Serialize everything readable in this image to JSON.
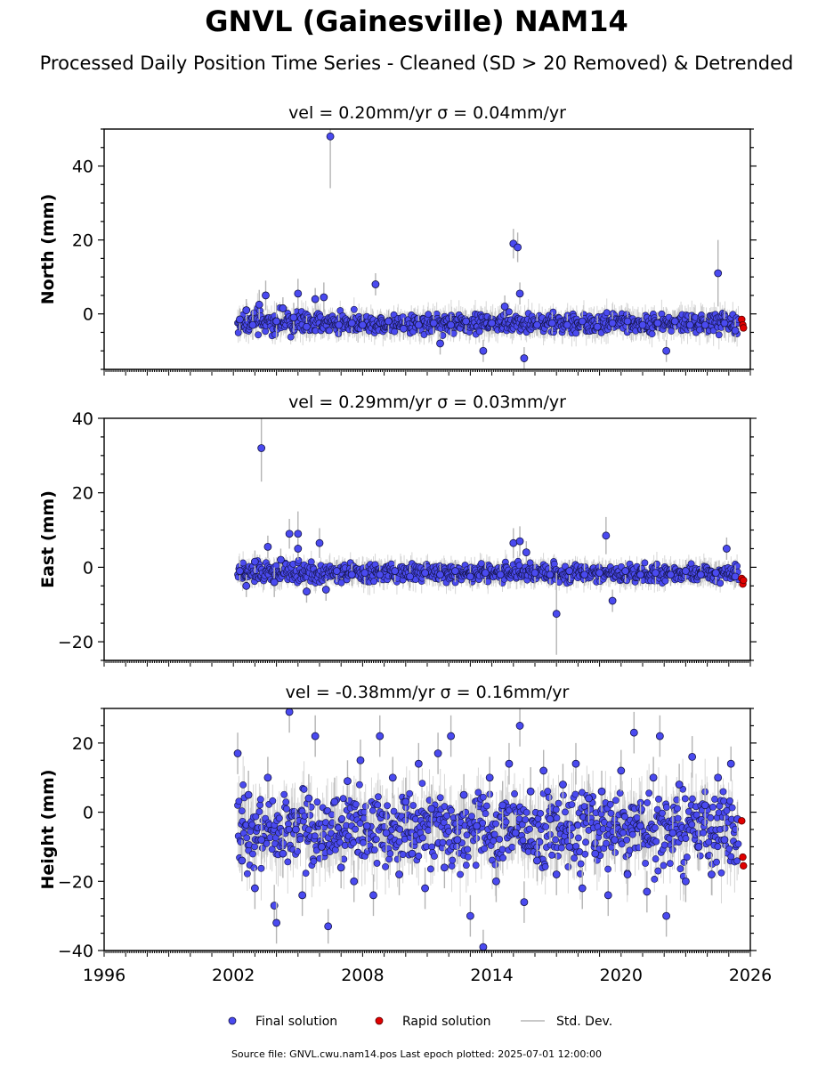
{
  "figure": {
    "title": "GNVL (Gainesville) NAM14",
    "subtitle": "Processed Daily Position Time Series - Cleaned (SD > 20 Removed) & Detrended",
    "footer": "Source file: GNVL.cwu.nam14.pos  Last epoch plotted: 2025-07-01 12:00:00"
  },
  "legend": {
    "final": "Final solution",
    "rapid": "Rapid solution",
    "sd": "Std. Dev."
  },
  "colors": {
    "final_fill": "#4a4af0",
    "final_edge": "#141446",
    "rapid_fill": "#e00000",
    "sd_line": "#b4b4b4"
  },
  "chart_data": [
    {
      "type": "scatter",
      "ylabel": "North (mm)",
      "title_vel": "vel = 0.20mm/yr",
      "title_sigma": "σ = 0.04mm/yr",
      "xlim": [
        1996,
        2026
      ],
      "ylim": [
        -15,
        50
      ],
      "yticks": [
        0,
        20,
        40
      ],
      "yticklabels": [
        "0",
        "20",
        "40"
      ],
      "series": [
        {
          "name": "Final solution",
          "points": [
            [
              2002.3,
              -1.5,
              3
            ],
            [
              2002.6,
              1.0,
              3
            ],
            [
              2002.9,
              -3.0,
              4
            ],
            [
              2003.2,
              2.5,
              4
            ],
            [
              2003.5,
              5.0,
              4
            ],
            [
              2004.0,
              -2.0,
              5
            ],
            [
              2004.3,
              1.5,
              3
            ],
            [
              2004.8,
              -1.0,
              4
            ],
            [
              2005.0,
              5.5,
              4
            ],
            [
              2005.4,
              -3.5,
              3
            ],
            [
              2005.8,
              4.0,
              3
            ],
            [
              2006.2,
              4.5,
              4
            ],
            [
              2006.5,
              48.0,
              14
            ],
            [
              2006.9,
              -3.0,
              3
            ],
            [
              2007.5,
              -2.5,
              3
            ],
            [
              2008.0,
              -3.0,
              3
            ],
            [
              2008.6,
              8.0,
              3
            ],
            [
              2009.2,
              -2.0,
              3
            ],
            [
              2009.9,
              -4.0,
              3
            ],
            [
              2010.6,
              -3.0,
              3
            ],
            [
              2011.3,
              -2.5,
              3
            ],
            [
              2011.6,
              -8.0,
              3
            ],
            [
              2012.1,
              -3.0,
              3
            ],
            [
              2012.8,
              -2.0,
              3
            ],
            [
              2013.6,
              -10.0,
              3
            ],
            [
              2014.0,
              -2.5,
              3
            ],
            [
              2014.6,
              2.0,
              3
            ],
            [
              2015.0,
              19.0,
              4
            ],
            [
              2015.2,
              18.0,
              4
            ],
            [
              2015.3,
              5.5,
              3
            ],
            [
              2015.5,
              -12.0,
              3
            ],
            [
              2016.1,
              -3.0,
              3
            ],
            [
              2016.8,
              -2.5,
              3
            ],
            [
              2017.5,
              -3.0,
              3
            ],
            [
              2018.2,
              -2.0,
              3
            ],
            [
              2018.9,
              -3.5,
              3
            ],
            [
              2019.6,
              -2.5,
              3
            ],
            [
              2020.3,
              -2.0,
              3
            ],
            [
              2021.0,
              -3.0,
              3
            ],
            [
              2021.7,
              -2.5,
              3
            ],
            [
              2022.1,
              -10.0,
              3
            ],
            [
              2022.5,
              -2.0,
              3
            ],
            [
              2023.2,
              -3.0,
              3
            ],
            [
              2023.9,
              -3.0,
              3
            ],
            [
              2024.5,
              11.0,
              9
            ],
            [
              2024.8,
              -2.5,
              4
            ],
            [
              2025.3,
              -4.5,
              3
            ]
          ]
        },
        {
          "name": "Rapid solution",
          "points": [
            [
              2025.6,
              -1.5,
              0
            ],
            [
              2025.65,
              -3.0,
              0
            ],
            [
              2025.68,
              -3.8,
              0
            ]
          ]
        }
      ]
    },
    {
      "type": "scatter",
      "ylabel": "East (mm)",
      "title_vel": "vel = 0.29mm/yr",
      "title_sigma": "σ = 0.03mm/yr",
      "xlim": [
        1996,
        2026
      ],
      "ylim": [
        -25,
        40
      ],
      "yticks": [
        -20,
        0,
        20,
        40
      ],
      "yticklabels": [
        "−20",
        "0",
        "20",
        "40"
      ],
      "series": [
        {
          "name": "Final solution",
          "points": [
            [
              2002.3,
              -1.0,
              3
            ],
            [
              2002.6,
              -5.0,
              3
            ],
            [
              2003.0,
              1.5,
              3
            ],
            [
              2003.3,
              32.0,
              9
            ],
            [
              2003.6,
              5.5,
              3
            ],
            [
              2003.9,
              -4.0,
              4
            ],
            [
              2004.2,
              2.0,
              3
            ],
            [
              2004.6,
              9.0,
              4
            ],
            [
              2005.0,
              9.0,
              6
            ],
            [
              2005.0,
              5.0,
              3
            ],
            [
              2005.4,
              -6.5,
              3
            ],
            [
              2006.0,
              6.5,
              4
            ],
            [
              2006.3,
              -6.0,
              3
            ],
            [
              2006.8,
              -1.0,
              3
            ],
            [
              2007.5,
              -2.0,
              3
            ],
            [
              2008.1,
              -1.5,
              3
            ],
            [
              2008.8,
              -2.0,
              3
            ],
            [
              2009.5,
              -1.0,
              3
            ],
            [
              2010.2,
              -2.5,
              3
            ],
            [
              2010.9,
              -1.5,
              3
            ],
            [
              2011.6,
              -2.0,
              3
            ],
            [
              2012.3,
              -1.0,
              3
            ],
            [
              2013.0,
              -2.5,
              3
            ],
            [
              2013.7,
              -1.5,
              3
            ],
            [
              2014.4,
              -2.0,
              3
            ],
            [
              2015.0,
              6.5,
              4
            ],
            [
              2015.3,
              7.0,
              4
            ],
            [
              2015.6,
              4.0,
              3
            ],
            [
              2016.0,
              -1.5,
              3
            ],
            [
              2016.7,
              -2.0,
              3
            ],
            [
              2017.0,
              -12.5,
              11
            ],
            [
              2017.6,
              -1.0,
              3
            ],
            [
              2018.3,
              -2.0,
              3
            ],
            [
              2019.0,
              -1.5,
              3
            ],
            [
              2019.3,
              8.5,
              5
            ],
            [
              2019.6,
              -9.0,
              3
            ],
            [
              2020.2,
              -1.0,
              3
            ],
            [
              2020.9,
              -2.0,
              3
            ],
            [
              2021.6,
              -1.5,
              3
            ],
            [
              2022.3,
              -2.0,
              3
            ],
            [
              2023.0,
              -1.0,
              3
            ],
            [
              2023.7,
              -2.0,
              3
            ],
            [
              2024.4,
              -1.5,
              3
            ],
            [
              2024.9,
              5.0,
              3
            ],
            [
              2025.3,
              -2.5,
              3
            ]
          ]
        },
        {
          "name": "Rapid solution",
          "points": [
            [
              2025.6,
              -3.0,
              0
            ],
            [
              2025.65,
              -4.5,
              0
            ],
            [
              2025.68,
              -3.5,
              0
            ]
          ]
        }
      ]
    },
    {
      "type": "scatter",
      "ylabel": "Height (mm)",
      "title_vel": "vel = -0.38mm/yr",
      "title_sigma": "σ = 0.16mm/yr",
      "xlim": [
        1996,
        2026
      ],
      "ylim": [
        -40,
        30
      ],
      "yticks": [
        -40,
        -20,
        0,
        20
      ],
      "yticklabels": [
        "−40",
        "−20",
        "0",
        "20"
      ],
      "xticks": [
        1996,
        2002,
        2008,
        2014,
        2020,
        2026
      ],
      "xticklabels": [
        "1996",
        "2002",
        "2008",
        "2014",
        "2020",
        "2026"
      ],
      "series": [
        {
          "name": "Final solution",
          "points": [
            [
              2002.2,
              17.0,
              6
            ],
            [
              2002.4,
              -14.0,
              6
            ],
            [
              2002.7,
              5.0,
              7
            ],
            [
              2003.0,
              -22.0,
              6
            ],
            [
              2003.3,
              -8.0,
              7
            ],
            [
              2003.6,
              10.0,
              6
            ],
            [
              2003.9,
              -27.0,
              6
            ],
            [
              2004.0,
              -32.0,
              6
            ],
            [
              2004.3,
              -12.0,
              7
            ],
            [
              2004.6,
              29.0,
              6
            ],
            [
              2004.9,
              -5.0,
              6
            ],
            [
              2005.2,
              -24.0,
              6
            ],
            [
              2005.5,
              4.0,
              7
            ],
            [
              2005.8,
              22.0,
              6
            ],
            [
              2006.1,
              -10.0,
              6
            ],
            [
              2006.4,
              -33.0,
              5
            ],
            [
              2006.7,
              3.0,
              7
            ],
            [
              2007.0,
              -16.0,
              6
            ],
            [
              2007.3,
              9.0,
              6
            ],
            [
              2007.6,
              -20.0,
              6
            ],
            [
              2007.9,
              15.0,
              6
            ],
            [
              2008.2,
              -4.0,
              7
            ],
            [
              2008.5,
              -24.0,
              6
            ],
            [
              2008.8,
              22.0,
              6
            ],
            [
              2009.1,
              -6.0,
              7
            ],
            [
              2009.4,
              10.0,
              6
            ],
            [
              2009.7,
              -18.0,
              6
            ],
            [
              2010.0,
              3.0,
              7
            ],
            [
              2010.3,
              -12.0,
              6
            ],
            [
              2010.6,
              14.0,
              6
            ],
            [
              2010.9,
              -22.0,
              6
            ],
            [
              2011.2,
              1.0,
              7
            ],
            [
              2011.5,
              17.0,
              6
            ],
            [
              2011.8,
              -16.0,
              6
            ],
            [
              2012.1,
              22.0,
              6
            ],
            [
              2012.4,
              -8.0,
              7
            ],
            [
              2012.7,
              5.0,
              6
            ],
            [
              2013.0,
              -30.0,
              6
            ],
            [
              2013.3,
              -4.0,
              7
            ],
            [
              2013.6,
              -39.0,
              5
            ],
            [
              2013.9,
              10.0,
              6
            ],
            [
              2014.2,
              -20.0,
              6
            ],
            [
              2014.5,
              2.0,
              7
            ],
            [
              2014.8,
              14.0,
              6
            ],
            [
              2015.1,
              -6.0,
              6
            ],
            [
              2015.3,
              25.0,
              6
            ],
            [
              2015.5,
              -26.0,
              6
            ],
            [
              2015.8,
              6.0,
              7
            ],
            [
              2016.1,
              -14.0,
              6
            ],
            [
              2016.4,
              12.0,
              6
            ],
            [
              2016.7,
              -2.0,
              7
            ],
            [
              2017.0,
              -18.0,
              6
            ],
            [
              2017.3,
              8.0,
              6
            ],
            [
              2017.6,
              -10.0,
              7
            ],
            [
              2017.9,
              14.0,
              6
            ],
            [
              2018.2,
              -22.0,
              6
            ],
            [
              2018.5,
              4.0,
              7
            ],
            [
              2018.8,
              -12.0,
              6
            ],
            [
              2019.1,
              6.0,
              6
            ],
            [
              2019.4,
              -24.0,
              6
            ],
            [
              2019.7,
              -8.0,
              7
            ],
            [
              2020.0,
              12.0,
              6
            ],
            [
              2020.3,
              -18.0,
              6
            ],
            [
              2020.6,
              23.0,
              6
            ],
            [
              2020.9,
              -4.0,
              7
            ],
            [
              2021.2,
              -23.0,
              6
            ],
            [
              2021.5,
              10.0,
              6
            ],
            [
              2021.8,
              22.0,
              6
            ],
            [
              2022.1,
              -30.0,
              6
            ],
            [
              2022.4,
              -6.0,
              7
            ],
            [
              2022.7,
              8.0,
              6
            ],
            [
              2023.0,
              -20.0,
              6
            ],
            [
              2023.3,
              16.0,
              6
            ],
            [
              2023.6,
              -10.0,
              7
            ],
            [
              2023.9,
              2.0,
              6
            ],
            [
              2024.2,
              -18.0,
              6
            ],
            [
              2024.5,
              10.0,
              6
            ],
            [
              2024.8,
              -8.0,
              7
            ],
            [
              2025.1,
              14.0,
              5
            ],
            [
              2025.4,
              -2.0,
              5
            ]
          ]
        },
        {
          "name": "Rapid solution",
          "points": [
            [
              2025.6,
              -2.5,
              0
            ],
            [
              2025.65,
              -13.0,
              0
            ],
            [
              2025.68,
              -15.5,
              0
            ]
          ]
        }
      ]
    }
  ]
}
